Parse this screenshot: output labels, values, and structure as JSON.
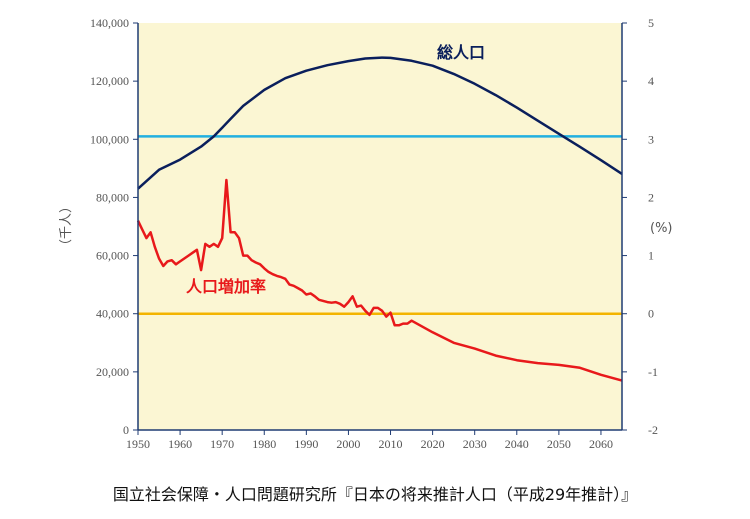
{
  "chart_data": {
    "type": "line",
    "xlim": [
      1950,
      2065
    ],
    "x_ticks": [
      1950,
      1960,
      1970,
      1980,
      1990,
      2000,
      2010,
      2020,
      2030,
      2040,
      2050,
      2060
    ],
    "y_left": {
      "label": "（千人）",
      "range": [
        0,
        140000
      ],
      "ticks": [
        "0",
        "20,000",
        "40,000",
        "60,000",
        "80,000",
        "100,000",
        "120,000",
        "140,000"
      ]
    },
    "y_right": {
      "label": "(%)",
      "range": [
        -2,
        5
      ],
      "ticks": [
        "-2",
        "-1",
        "0",
        "1",
        "2",
        "3",
        "4",
        "5"
      ]
    },
    "plot_background": "#fbf6d3",
    "reference_lines": [
      {
        "axis": "left",
        "value": 101000,
        "color": "#22b0e0"
      },
      {
        "axis": "right",
        "value": 0,
        "color": "#f3b400"
      }
    ],
    "series": [
      {
        "name": "総人口",
        "axis": "left",
        "color": "#0a1f5c",
        "x": [
          1950,
          1955,
          1960,
          1965,
          1968,
          1970,
          1972,
          1975,
          1980,
          1985,
          1990,
          1995,
          2000,
          2004,
          2008,
          2010,
          2015,
          2020,
          2025,
          2030,
          2035,
          2040,
          2045,
          2050,
          2055,
          2060,
          2065
        ],
        "y": [
          83000,
          89500,
          93000,
          97500,
          101000,
          104000,
          107000,
          111500,
          117000,
          121000,
          123600,
          125500,
          126900,
          127800,
          128100,
          128000,
          127000,
          125300,
          122500,
          119100,
          115200,
          110900,
          106400,
          101900,
          97400,
          92800,
          88100
        ]
      },
      {
        "name": "人口増加率",
        "axis": "right",
        "color": "#e8191b",
        "x": [
          1950,
          1951,
          1952,
          1953,
          1954,
          1955,
          1956,
          1957,
          1958,
          1959,
          1960,
          1961,
          1962,
          1963,
          1964,
          1965,
          1966,
          1967,
          1968,
          1969,
          1970,
          1971,
          1972,
          1973,
          1974,
          1975,
          1976,
          1977,
          1978,
          1979,
          1980,
          1981,
          1982,
          1983,
          1984,
          1985,
          1986,
          1987,
          1988,
          1989,
          1990,
          1991,
          1992,
          1993,
          1994,
          1995,
          1996,
          1997,
          1998,
          1999,
          2000,
          2001,
          2002,
          2003,
          2004,
          2005,
          2006,
          2007,
          2008,
          2009,
          2010,
          2011,
          2012,
          2013,
          2014,
          2015,
          2020,
          2025,
          2030,
          2035,
          2040,
          2045,
          2050,
          2055,
          2060,
          2065
        ],
        "y": [
          1.6,
          1.45,
          1.3,
          1.4,
          1.15,
          0.95,
          0.82,
          0.9,
          0.92,
          0.85,
          0.9,
          0.95,
          1.0,
          1.05,
          1.1,
          0.75,
          1.2,
          1.15,
          1.2,
          1.15,
          1.3,
          2.3,
          1.4,
          1.4,
          1.3,
          1.0,
          1.0,
          0.92,
          0.88,
          0.85,
          0.78,
          0.72,
          0.68,
          0.65,
          0.63,
          0.6,
          0.5,
          0.48,
          0.44,
          0.4,
          0.33,
          0.35,
          0.3,
          0.24,
          0.22,
          0.2,
          0.19,
          0.2,
          0.17,
          0.12,
          0.2,
          0.3,
          0.12,
          0.14,
          0.05,
          -0.02,
          0.1,
          0.1,
          0.05,
          -0.05,
          0.02,
          -0.2,
          -0.2,
          -0.17,
          -0.17,
          -0.12,
          -0.32,
          -0.5,
          -0.6,
          -0.72,
          -0.8,
          -0.85,
          -0.88,
          -0.93,
          -1.05,
          -1.15
        ]
      }
    ],
    "annotations": [
      {
        "text": "総人口",
        "color": "#0a1f5c"
      },
      {
        "text": "人口増加率",
        "color": "#e8191b"
      }
    ]
  },
  "source_text": "国立社会保障・人口問題研究所『日本の将来推計人口（平成29年推計）』"
}
